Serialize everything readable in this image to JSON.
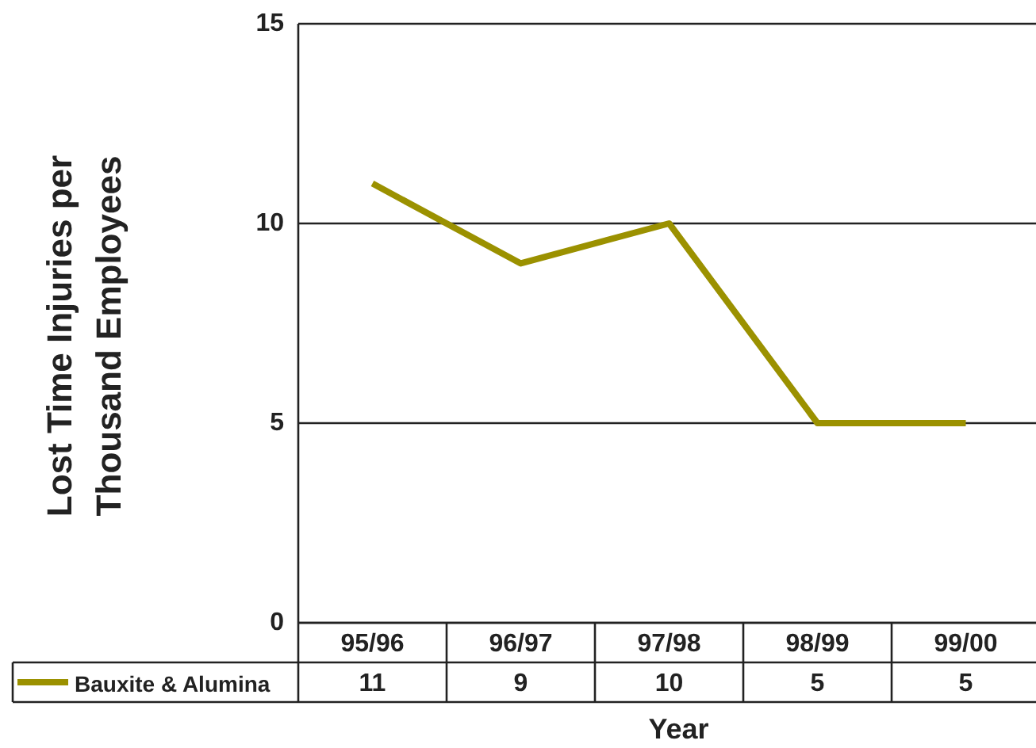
{
  "chart_data": {
    "type": "line",
    "xlabel": "Year",
    "ylabel": "Lost Time Injuries per Thousand Employees",
    "categories": [
      "95/96",
      "96/97",
      "97/98",
      "98/99",
      "99/00"
    ],
    "series": [
      {
        "name": "Bauxite & Alumina",
        "color": "#9b9100",
        "values": [
          11,
          9,
          10,
          5,
          5
        ]
      }
    ],
    "ylim": [
      0,
      15
    ],
    "yticks": [
      0,
      5,
      10,
      15
    ],
    "grid": "y",
    "legend": "bottom left",
    "data_labels": true
  }
}
